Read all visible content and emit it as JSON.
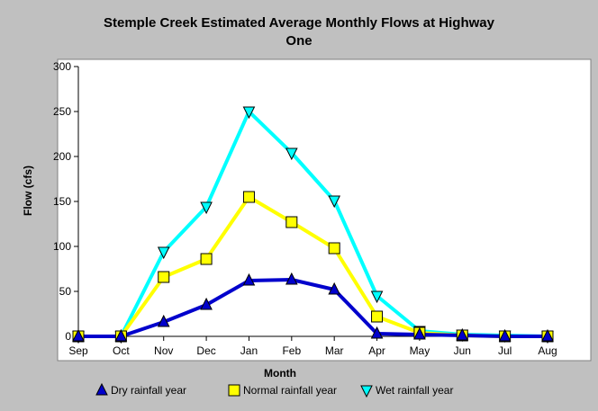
{
  "chart_data": {
    "type": "line",
    "title_line1": "Stemple Creek Estimated Average Monthly Flows at Highway",
    "title_line2": "One",
    "xlabel": "Month",
    "ylabel": "Flow (cfs)",
    "categories": [
      "Sep",
      "Oct",
      "Nov",
      "Dec",
      "Jan",
      "Feb",
      "Mar",
      "Apr",
      "May",
      "Jun",
      "Jul",
      "Aug"
    ],
    "ylim": [
      0,
      300
    ],
    "yticks": [
      0,
      50,
      100,
      150,
      200,
      250,
      300
    ],
    "grid": false,
    "legend_position": "bottom",
    "series": [
      {
        "name": "Dry rainfall year",
        "color": "#0000cc",
        "marker": "triangle-up",
        "values": [
          0,
          0,
          16,
          35,
          62,
          63,
          52,
          3,
          2,
          1,
          0,
          0
        ]
      },
      {
        "name": "Normal rainfall year",
        "color": "#ffff00",
        "marker": "square",
        "values": [
          0,
          0,
          66,
          86,
          155,
          127,
          98,
          22,
          4,
          1,
          0,
          0
        ]
      },
      {
        "name": "Wet rainfall year",
        "color": "#00ffff",
        "marker": "triangle-down",
        "values": [
          0,
          0,
          94,
          144,
          250,
          204,
          151,
          45,
          6,
          2,
          1,
          0
        ]
      }
    ]
  }
}
